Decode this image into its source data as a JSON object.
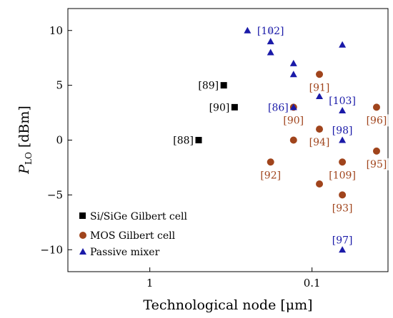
{
  "chart_data": {
    "type": "scatter",
    "xlabel": "Technological node [μm]",
    "ylabel_main": "P",
    "ylabel_sub": "LO",
    "ylabel_unit": " [dBm]",
    "x_scale": "log-reversed",
    "xlim": [
      3.2,
      0.034
    ],
    "ylim": [
      -12,
      12
    ],
    "x_ticks": [
      {
        "value": 1,
        "label": "1"
      },
      {
        "value": 0.1,
        "label": "0.1"
      }
    ],
    "y_ticks": [
      {
        "value": 10,
        "label": "10"
      },
      {
        "value": 5,
        "label": "5"
      },
      {
        "value": 0,
        "label": "0"
      },
      {
        "value": -5,
        "label": "−5"
      },
      {
        "value": -10,
        "label": "−10"
      }
    ],
    "grid": false,
    "legend_position": "bottom-left",
    "series": [
      {
        "name": "Si/SiGe Gilbert cell",
        "marker": "square",
        "color": "#000000",
        "points": [
          {
            "x": 0.35,
            "y": 5,
            "label": "[89]",
            "label_side": "left"
          },
          {
            "x": 0.3,
            "y": 3,
            "label": "[90]",
            "label_side": "left"
          },
          {
            "x": 0.5,
            "y": 0,
            "label": "[88]",
            "label_side": "left"
          }
        ]
      },
      {
        "name": "MOS Gilbert cell",
        "marker": "circle",
        "color": "#a0441c",
        "label_color": "#a0441c",
        "points": [
          {
            "x": 0.09,
            "y": 6,
            "label": "[91]",
            "label_side": "below"
          },
          {
            "x": 0.13,
            "y": 3,
            "label": "[90]",
            "label_side": "below"
          },
          {
            "x": 0.13,
            "y": 0
          },
          {
            "x": 0.09,
            "y": 1,
            "label": "[94]",
            "label_side": "below"
          },
          {
            "x": 0.04,
            "y": 3,
            "label": "[96]",
            "label_side": "below"
          },
          {
            "x": 0.04,
            "y": -1,
            "label": "[95]",
            "label_side": "below"
          },
          {
            "x": 0.18,
            "y": -2,
            "label": "[92]",
            "label_side": "below"
          },
          {
            "x": 0.065,
            "y": -2,
            "label": "[109]",
            "label_side": "below"
          },
          {
            "x": 0.09,
            "y": -4
          },
          {
            "x": 0.065,
            "y": -5,
            "label": "[93]",
            "label_side": "below"
          }
        ]
      },
      {
        "name": "Passive mixer",
        "marker": "triangle",
        "color": "#1a1aa8",
        "label_color": "#1a1aa8",
        "points": [
          {
            "x": 0.25,
            "y": 10
          },
          {
            "x": 0.18,
            "y": 10,
            "label": "[102]",
            "label_side": "center"
          },
          {
            "x": 0.18,
            "y": 9
          },
          {
            "x": 0.18,
            "y": 8
          },
          {
            "x": 0.13,
            "y": 7
          },
          {
            "x": 0.13,
            "y": 6
          },
          {
            "x": 0.065,
            "y": 8.7
          },
          {
            "x": 0.09,
            "y": 4
          },
          {
            "x": 0.13,
            "y": 3,
            "label": "[86]",
            "label_side": "left"
          },
          {
            "x": 0.065,
            "y": 2.7,
            "label": "[103]",
            "label_side": "above"
          },
          {
            "x": 0.065,
            "y": 0,
            "label": "[98]",
            "label_side": "above"
          },
          {
            "x": 0.065,
            "y": -10,
            "label": "[97]",
            "label_side": "above"
          }
        ]
      }
    ]
  }
}
